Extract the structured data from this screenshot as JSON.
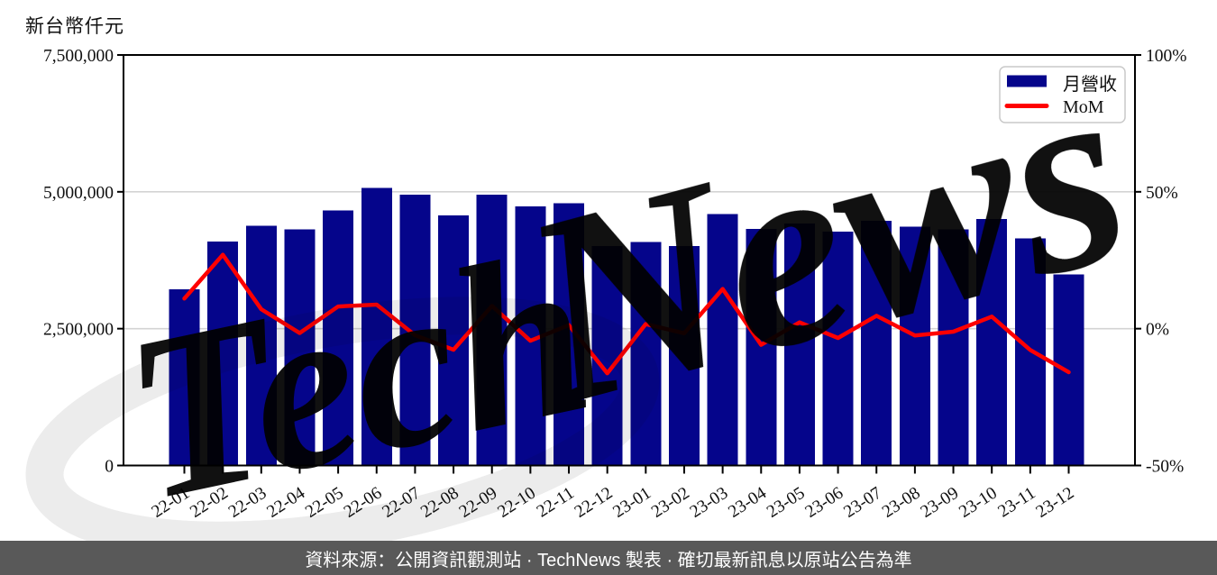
{
  "page": {
    "axis_title": "新台幣仟元",
    "caption": "資料來源：公開資訊觀測站 · TechNews 製表 · 確切最新訊息以原站公告為準",
    "watermark_text": "TechNews"
  },
  "legend": {
    "bar_label": "月營收",
    "line_label": "MoM"
  },
  "colors": {
    "bar": "#05058b",
    "line": "#ff0000",
    "grid": "#d3d3d3",
    "axis": "#000000",
    "text": "#111111",
    "legend_border": "#c9c9c9",
    "caption_bg": "#595959",
    "caption_text": "#ffffff",
    "watermark_pink": "#f7dede",
    "watermark_gray": "#ececec"
  },
  "chart_data": {
    "type": "bar",
    "title": "",
    "xlabel": "",
    "ylabel": "新台幣仟元",
    "grid": "horizontal",
    "legend_position": "upper-right",
    "categories": [
      "22-01",
      "22-02",
      "22-03",
      "22-04",
      "22-05",
      "22-06",
      "22-07",
      "22-08",
      "22-09",
      "22-10",
      "22-11",
      "22-12",
      "23-01",
      "23-02",
      "23-03",
      "23-04",
      "23-05",
      "23-06",
      "23-07",
      "23-08",
      "23-09",
      "23-10",
      "23-11",
      "23-12"
    ],
    "series": [
      {
        "name": "月營收",
        "type": "bar",
        "axis": "left",
        "unit": "新台幣仟元",
        "values": [
          3220000,
          4090000,
          4380000,
          4310000,
          4660000,
          5070000,
          4950000,
          4570000,
          4950000,
          4730000,
          4790000,
          4010000,
          4080000,
          4010000,
          4590000,
          4320000,
          4420000,
          4270000,
          4470000,
          4360000,
          4310000,
          4500000,
          4150000,
          3490000
        ]
      },
      {
        "name": "MoM",
        "type": "line",
        "axis": "right",
        "unit": "%",
        "values": [
          11.0,
          27.0,
          7.1,
          -1.6,
          8.1,
          8.8,
          -2.4,
          -7.7,
          8.3,
          -4.4,
          1.3,
          -16.3,
          1.7,
          -1.7,
          14.5,
          -5.9,
          2.3,
          -3.4,
          4.7,
          -2.5,
          -1.1,
          4.4,
          -7.8,
          -15.9
        ]
      }
    ],
    "left_axis": {
      "label": "新台幣仟元",
      "range": [
        0,
        7500000
      ],
      "ticks": [
        0,
        2500000,
        5000000,
        7500000
      ],
      "tick_labels": [
        "0",
        "2,500,000",
        "5,000,000",
        "7,500,000"
      ]
    },
    "right_axis": {
      "range": [
        -50,
        100
      ],
      "ticks": [
        -50,
        0,
        50,
        100
      ],
      "tick_labels": [
        "-50%",
        "0%",
        "50%",
        "100%"
      ]
    }
  }
}
